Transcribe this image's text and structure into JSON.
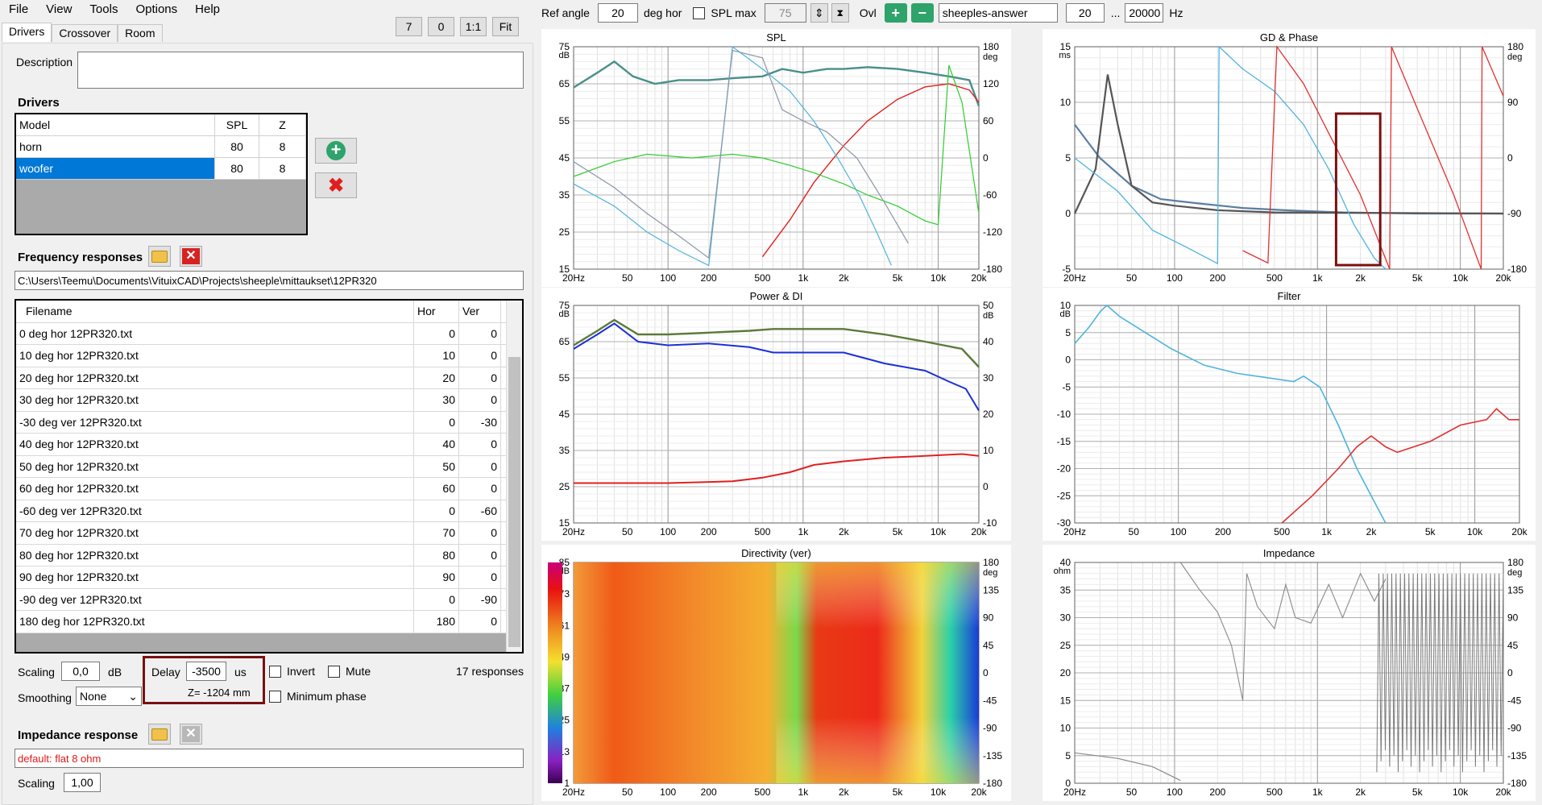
{
  "menu": [
    "File",
    "View",
    "Tools",
    "Options",
    "Help"
  ],
  "zoom_buttons": [
    "7",
    "0",
    "1:1",
    "Fit"
  ],
  "tabs": [
    "Drivers",
    "Crossover",
    "Room"
  ],
  "description_label": "Description",
  "drivers": {
    "title": "Drivers",
    "columns": [
      "Model",
      "SPL",
      "Z"
    ],
    "rows": [
      {
        "model": "horn",
        "spl": "80",
        "z": "8"
      },
      {
        "model": "woofer",
        "spl": "80",
        "z": "8"
      }
    ]
  },
  "freq": {
    "title": "Frequency responses",
    "path": "C:\\Users\\Teemu\\Documents\\VituixCAD\\Projects\\sheeple\\mittaukset\\12PR320",
    "columns": [
      "Filename",
      "Hor",
      "Ver"
    ],
    "rows": [
      [
        "0 deg hor 12PR320.txt",
        "0",
        "0"
      ],
      [
        "10 deg hor 12PR320.txt",
        "10",
        "0"
      ],
      [
        "20 deg hor 12PR320.txt",
        "20",
        "0"
      ],
      [
        "30 deg hor 12PR320.txt",
        "30",
        "0"
      ],
      [
        "-30 deg ver 12PR320.txt",
        "0",
        "-30"
      ],
      [
        "40 deg hor 12PR320.txt",
        "40",
        "0"
      ],
      [
        "50 deg hor 12PR320.txt",
        "50",
        "0"
      ],
      [
        "60 deg hor 12PR320.txt",
        "60",
        "0"
      ],
      [
        "-60 deg ver 12PR320.txt",
        "0",
        "-60"
      ],
      [
        "70 deg hor 12PR320.txt",
        "70",
        "0"
      ],
      [
        "80 deg hor 12PR320.txt",
        "80",
        "0"
      ],
      [
        "90 deg hor 12PR320.txt",
        "90",
        "0"
      ],
      [
        "-90 deg ver 12PR320.txt",
        "0",
        "-90"
      ],
      [
        "180 deg hor 12PR320.txt",
        "180",
        "0"
      ]
    ]
  },
  "controls": {
    "scaling_label": "Scaling",
    "scaling_value": "0,0",
    "scaling_unit": "dB",
    "delay_label": "Delay",
    "delay_value": "-3500",
    "delay_unit": "us",
    "z_text": "Z= -1204 mm",
    "invert_label": "Invert",
    "mute_label": "Mute",
    "responses_count": "17 responses",
    "smoothing_label": "Smoothing",
    "smoothing_value": "None",
    "min_phase_label": "Minimum phase"
  },
  "impedance": {
    "title": "Impedance response",
    "value": "default: flat 8 ohm",
    "scaling_label": "Scaling",
    "scaling_value": "1,00"
  },
  "topbar": {
    "ref_angle_label": "Ref angle",
    "ref_angle_value": "20",
    "deg_hor_label": "deg hor",
    "spl_max_label": "SPL max",
    "spl_max_value": "75",
    "ovl_label": "Ovl",
    "name_value": "sheeples-answer",
    "f_from": "20",
    "dots": "...",
    "f_to": "20000",
    "hz": "Hz"
  },
  "freq_ticks": [
    "20Hz",
    "50",
    "100",
    "200",
    "500",
    "1k",
    "2k",
    "5k",
    "10k",
    "20k"
  ],
  "charts": {
    "spl": {
      "title": "SPL",
      "yunit": "dB",
      "y2unit": "deg",
      "yticks": [
        "75",
        "65",
        "55",
        "45",
        "35",
        "25",
        "15"
      ],
      "y2ticks": [
        "180",
        "120",
        "60",
        "0",
        "-60",
        "-120",
        "-180"
      ]
    },
    "gd": {
      "title": "GD & Phase",
      "yunit": "ms",
      "y2unit": "deg",
      "yticks": [
        "15",
        "10",
        "5",
        "0",
        "-5"
      ],
      "y2ticks": [
        "180",
        "90",
        "0",
        "-90",
        "-180"
      ]
    },
    "power": {
      "title": "Power & DI",
      "yunit": "dB",
      "y2unit": "dB",
      "yticks": [
        "75",
        "65",
        "55",
        "45",
        "35",
        "25",
        "15"
      ],
      "y2ticks": [
        "50",
        "40",
        "30",
        "20",
        "10",
        "0",
        "-10"
      ]
    },
    "filter": {
      "title": "Filter",
      "yunit": "dB",
      "yticks": [
        "10",
        "5",
        "0",
        "-5",
        "-10",
        "-15",
        "-20",
        "-25",
        "-30"
      ]
    },
    "directivity": {
      "title": "Directivity (ver)",
      "yunit": "dB",
      "y2unit": "deg",
      "yticks": [
        "85",
        "73",
        "61",
        "49",
        "37",
        "25",
        "13",
        "1"
      ],
      "y2ticks": [
        "180",
        "135",
        "90",
        "45",
        "0",
        "-45",
        "-90",
        "-135",
        "-180"
      ]
    },
    "impedance": {
      "title": "Impedance",
      "yunit": "ohm",
      "y2unit": "deg",
      "yticks": [
        "40",
        "35",
        "30",
        "25",
        "20",
        "15",
        "10",
        "5",
        "0"
      ],
      "y2ticks": [
        "180",
        "135",
        "90",
        "45",
        "0",
        "-45",
        "-90",
        "-135",
        "-180"
      ]
    }
  }
}
